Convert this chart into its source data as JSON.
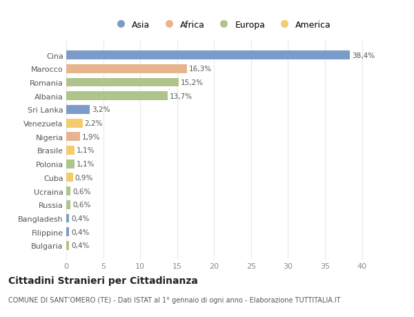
{
  "countries": [
    "Cina",
    "Marocco",
    "Romania",
    "Albania",
    "Sri Lanka",
    "Venezuela",
    "Nigeria",
    "Brasile",
    "Polonia",
    "Cuba",
    "Ucraina",
    "Russia",
    "Bangladesh",
    "Filippine",
    "Bulgaria"
  ],
  "values": [
    38.4,
    16.3,
    15.2,
    13.7,
    3.2,
    2.2,
    1.9,
    1.1,
    1.1,
    0.9,
    0.6,
    0.6,
    0.4,
    0.4,
    0.4
  ],
  "labels": [
    "38,4%",
    "16,3%",
    "15,2%",
    "13,7%",
    "3,2%",
    "2,2%",
    "1,9%",
    "1,1%",
    "1,1%",
    "0,9%",
    "0,6%",
    "0,6%",
    "0,4%",
    "0,4%",
    "0,4%"
  ],
  "colors": [
    "#7b9bc8",
    "#e8b48e",
    "#aec48a",
    "#aec48a",
    "#7b9bc8",
    "#f2cc6e",
    "#e8b48e",
    "#f2cc6e",
    "#aec48a",
    "#f2cc6e",
    "#aec48a",
    "#aec48a",
    "#7b9bc8",
    "#7b9bc8",
    "#aec48a"
  ],
  "legend_labels": [
    "Asia",
    "Africa",
    "Europa",
    "America"
  ],
  "legend_colors": [
    "#7b9bc8",
    "#e8b48e",
    "#aec48a",
    "#f2cc6e"
  ],
  "title": "Cittadini Stranieri per Cittadinanza",
  "subtitle": "COMUNE DI SANT’OMERO (TE) - Dati ISTAT al 1° gennaio di ogni anno - Elaborazione TUTTITALIA.IT",
  "xlim": [
    0,
    42
  ],
  "xticks": [
    0,
    5,
    10,
    15,
    20,
    25,
    30,
    35,
    40
  ],
  "background_color": "#ffffff",
  "plot_bg_color": "#ffffff",
  "grid_color": "#e8e8e8",
  "bar_height": 0.65,
  "label_fontsize": 7.5,
  "tick_fontsize": 8,
  "title_fontsize": 10,
  "subtitle_fontsize": 7
}
